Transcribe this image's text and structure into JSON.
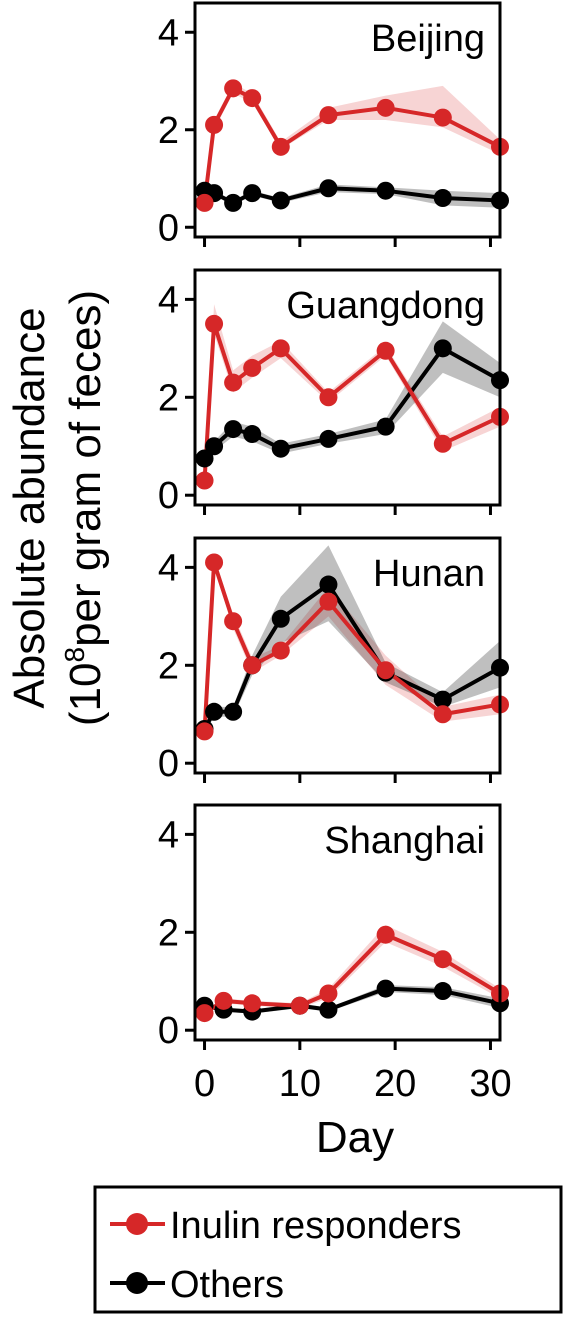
{
  "chart_data": {
    "type": "line",
    "ylabel": "Absolute abundance",
    "ylabel_line2_open": "(10",
    "ylabel_superscript": "8",
    "ylabel_line2_rest": "per gram of feces)",
    "xlabel": "Day",
    "xlim": [
      -1,
      31
    ],
    "ylim": [
      -0.2,
      4.6
    ],
    "yticks": [
      "0",
      "2",
      "4"
    ],
    "xticks": [
      "0",
      "10",
      "20",
      "30"
    ],
    "shaded_band": "error range around each series",
    "legend": {
      "placement": "bottom",
      "entries": [
        {
          "label": "Inulin responders",
          "color": "#d62728"
        },
        {
          "label": "Others",
          "color": "#000000"
        }
      ]
    },
    "panels": [
      {
        "title": "Beijing",
        "series": [
          {
            "name": "Inulin responders",
            "color": "#d62728",
            "x": [
              0,
              1,
              3,
              5,
              8,
              13,
              19,
              25,
              31
            ],
            "y": [
              0.5,
              2.1,
              2.85,
              2.65,
              1.65,
              2.3,
              2.45,
              2.25,
              1.65
            ],
            "lower": [
              0.45,
              2.0,
              2.75,
              2.55,
              1.6,
              2.2,
              2.2,
              2.05,
              1.5
            ],
            "upper": [
              0.55,
              2.2,
              2.95,
              2.75,
              1.75,
              2.45,
              2.7,
              2.9,
              1.8
            ]
          },
          {
            "name": "Others",
            "color": "#000000",
            "x": [
              0,
              1,
              3,
              5,
              8,
              13,
              19,
              25,
              31
            ],
            "y": [
              0.75,
              0.7,
              0.5,
              0.7,
              0.55,
              0.8,
              0.75,
              0.6,
              0.55
            ],
            "lower": [
              0.7,
              0.65,
              0.45,
              0.65,
              0.5,
              0.72,
              0.68,
              0.45,
              0.4
            ],
            "upper": [
              0.8,
              0.75,
              0.55,
              0.75,
              0.6,
              0.88,
              0.82,
              0.75,
              0.7
            ]
          }
        ]
      },
      {
        "title": "Guangdong",
        "series": [
          {
            "name": "Inulin responders",
            "color": "#d62728",
            "x": [
              0,
              1,
              3,
              5,
              8,
              13,
              19,
              25,
              31
            ],
            "y": [
              0.3,
              3.5,
              2.3,
              2.6,
              3.0,
              2.0,
              2.95,
              1.05,
              1.6
            ],
            "lower": [
              0.25,
              3.3,
              2.1,
              2.4,
              2.8,
              1.9,
              2.85,
              0.9,
              1.4
            ],
            "upper": [
              0.35,
              3.9,
              2.55,
              2.85,
              3.15,
              2.1,
              3.05,
              1.2,
              1.8
            ]
          },
          {
            "name": "Others",
            "color": "#000000",
            "x": [
              0,
              1,
              3,
              5,
              8,
              13,
              19,
              25,
              31
            ],
            "y": [
              0.75,
              1.0,
              1.35,
              1.25,
              0.95,
              1.15,
              1.4,
              3.0,
              2.35
            ],
            "lower": [
              0.65,
              0.9,
              1.2,
              1.1,
              0.85,
              1.05,
              1.25,
              2.5,
              2.0
            ],
            "upper": [
              0.85,
              1.1,
              1.5,
              1.4,
              1.05,
              1.25,
              1.55,
              3.55,
              2.7
            ]
          }
        ]
      },
      {
        "title": "Hunan",
        "series": [
          {
            "name": "Inulin responders",
            "color": "#d62728",
            "x": [
              0,
              1,
              3,
              5,
              8,
              13,
              19,
              25,
              31
            ],
            "y": [
              0.65,
              4.1,
              2.9,
              2.0,
              2.3,
              3.3,
              1.9,
              1.0,
              1.2
            ],
            "lower": [
              0.6,
              4.0,
              2.75,
              1.85,
              2.2,
              3.0,
              1.6,
              0.85,
              1.0
            ],
            "upper": [
              0.7,
              4.2,
              3.05,
              2.15,
              2.4,
              3.6,
              2.2,
              1.15,
              1.4
            ]
          },
          {
            "name": "Others",
            "color": "#000000",
            "x": [
              0,
              1,
              3,
              5,
              8,
              13,
              19,
              25,
              31
            ],
            "y": [
              0.7,
              1.05,
              1.05,
              2.0,
              2.95,
              3.65,
              1.85,
              1.3,
              1.95
            ],
            "lower": [
              0.6,
              0.95,
              0.95,
              1.8,
              2.45,
              2.9,
              1.65,
              1.15,
              1.55
            ],
            "upper": [
              0.8,
              1.15,
              1.15,
              2.2,
              3.4,
              4.45,
              2.05,
              1.45,
              2.5
            ]
          }
        ]
      },
      {
        "title": "Shanghai",
        "series": [
          {
            "name": "Inulin responders",
            "color": "#d62728",
            "x": [
              0,
              2,
              5,
              10,
              13,
              19,
              25,
              31
            ],
            "y": [
              0.35,
              0.6,
              0.55,
              0.5,
              0.75,
              1.95,
              1.45,
              0.75
            ],
            "lower": [
              0.3,
              0.55,
              0.5,
              0.45,
              0.65,
              1.8,
              1.3,
              0.65
            ],
            "upper": [
              0.4,
              0.65,
              0.6,
              0.55,
              0.85,
              2.15,
              1.6,
              0.85
            ]
          },
          {
            "name": "Others",
            "color": "#000000",
            "x": [
              0,
              2,
              5,
              10,
              13,
              19,
              25,
              31
            ],
            "y": [
              0.5,
              0.42,
              0.38,
              0.5,
              0.42,
              0.85,
              0.8,
              0.55
            ],
            "lower": [
              0.45,
              0.38,
              0.34,
              0.45,
              0.38,
              0.78,
              0.72,
              0.45
            ],
            "upper": [
              0.55,
              0.46,
              0.42,
              0.55,
              0.46,
              0.92,
              0.88,
              0.65
            ]
          }
        ]
      }
    ]
  }
}
